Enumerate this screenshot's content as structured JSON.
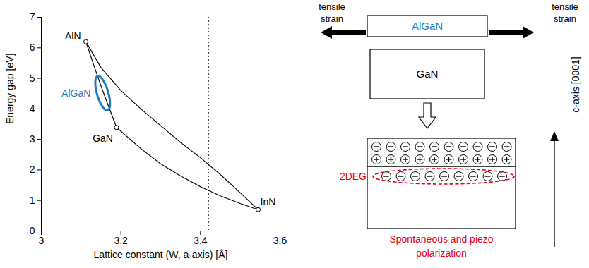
{
  "chart_data": {
    "type": "line",
    "xlabel": "Lattice constant (W, a-axis) [Å]",
    "ylabel": "Energy gap [eV]",
    "xlim": [
      3,
      3.6
    ],
    "xticks": [
      3,
      3.2,
      3.4,
      3.6
    ],
    "ylim": [
      0,
      7
    ],
    "yticks": [
      0,
      1,
      2,
      3,
      4,
      5,
      6,
      7
    ],
    "grid": false,
    "color": "#000000",
    "series": [
      {
        "x": [
          3.112,
          3.13,
          3.15,
          3.17,
          3.189
        ],
        "values": [
          6.2,
          5.5,
          4.75,
          4.05,
          3.39
        ]
      },
      {
        "x": [
          3.189,
          3.25,
          3.3,
          3.35,
          3.4,
          3.45,
          3.5,
          3.545
        ],
        "values": [
          3.39,
          2.7,
          2.2,
          1.8,
          1.45,
          1.15,
          0.9,
          0.7
        ]
      },
      {
        "x": [
          3.112,
          3.15,
          3.2,
          3.25,
          3.3,
          3.35,
          3.4,
          3.45,
          3.5,
          3.545
        ],
        "values": [
          6.2,
          5.35,
          4.6,
          4.0,
          3.45,
          2.9,
          2.4,
          1.85,
          1.25,
          0.7
        ]
      }
    ],
    "points": {
      "labels": [
        "AlN",
        "GaN",
        "InN"
      ],
      "x": [
        3.112,
        3.189,
        3.545
      ],
      "values": [
        6.2,
        3.39,
        0.7
      ],
      "marker": "circle"
    },
    "reference_line": {
      "x": 3.42,
      "line_style": "dotted"
    },
    "region": {
      "label": "AlGaN",
      "color": "#1f7bc0",
      "x": [
        3.165,
        3.145
      ],
      "values": [
        4.05,
        4.95
      ]
    }
  },
  "diagram": {
    "strained_layer": {
      "label": "AlGaN",
      "color": "#1f7bc0"
    },
    "strain_arrows": [
      {
        "label": "tensile strain",
        "direction": "left"
      },
      {
        "label": "tensile strain",
        "direction": "right"
      }
    ],
    "substrate": {
      "label": "GaN"
    },
    "electron_gas": {
      "label": "2DEG",
      "color": "#e60012"
    },
    "caption": {
      "text": "Spontaneous and piezo polarization",
      "color": "#e60012"
    },
    "axis": {
      "label": "c-axis [0001]",
      "direction": "up"
    }
  }
}
